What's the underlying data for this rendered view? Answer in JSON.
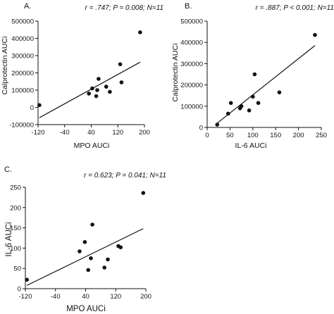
{
  "chart_data": [
    {
      "type": "scatter",
      "panel": "A.",
      "stat": "r = .747; P = 0.008; N=11",
      "xlabel": "MPO AUCi",
      "ylabel": "Calprotectin AUCi",
      "xlim": [
        -120,
        200
      ],
      "ylim": [
        -100000,
        500000
      ],
      "xticks": [
        -120,
        -40,
        40,
        120,
        200
      ],
      "yticks": [
        -100000,
        0,
        100000,
        200000,
        300000,
        400000,
        500000
      ],
      "xtick_labels": [
        "-120",
        "-40",
        "40",
        "120",
        "200"
      ],
      "ytick_labels": [
        "-100000",
        "0",
        "100000",
        "200000",
        "300000",
        "400000",
        "500000"
      ],
      "points": [
        {
          "x": -116,
          "y": 13000
        },
        {
          "x": 33,
          "y": 80000
        },
        {
          "x": 43,
          "y": 110000
        },
        {
          "x": 55,
          "y": 65000
        },
        {
          "x": 58,
          "y": 100000
        },
        {
          "x": 62,
          "y": 165000
        },
        {
          "x": 85,
          "y": 120000
        },
        {
          "x": 96,
          "y": 90000
        },
        {
          "x": 127,
          "y": 250000
        },
        {
          "x": 131,
          "y": 145000
        },
        {
          "x": 187,
          "y": 435000
        }
      ],
      "fit": {
        "x": [
          -116,
          187
        ],
        "y": [
          -60000,
          262000
        ]
      }
    },
    {
      "type": "scatter",
      "panel": "B.",
      "stat": "r = .887; P < 0.001; N=11",
      "xlabel": "IL-6 AUCi",
      "ylabel": "Calprotectin AUCi",
      "xlim": [
        0,
        250
      ],
      "ylim": [
        0,
        500000
      ],
      "xticks": [
        0,
        50,
        100,
        150,
        200,
        250
      ],
      "yticks": [
        0,
        100000,
        200000,
        300000,
        400000,
        500000
      ],
      "xtick_labels": [
        "0",
        "50",
        "100",
        "150",
        "200",
        "250"
      ],
      "ytick_labels": [
        "0",
        "100000",
        "200000",
        "300000",
        "400000",
        "500000"
      ],
      "points": [
        {
          "x": 22,
          "y": 13000
        },
        {
          "x": 46,
          "y": 65000
        },
        {
          "x": 52,
          "y": 115000
        },
        {
          "x": 72,
          "y": 90000
        },
        {
          "x": 75,
          "y": 100000
        },
        {
          "x": 92,
          "y": 80000
        },
        {
          "x": 100,
          "y": 145000
        },
        {
          "x": 104,
          "y": 250000
        },
        {
          "x": 112,
          "y": 115000
        },
        {
          "x": 158,
          "y": 165000
        },
        {
          "x": 236,
          "y": 435000
        }
      ],
      "fit": {
        "x": [
          22,
          236
        ],
        "y": [
          20000,
          385000
        ]
      }
    },
    {
      "type": "scatter",
      "panel": "C.",
      "stat": "r = 0.623; P = 0.041; N=11",
      "xlabel": "MPO AUCi",
      "ylabel": "IL-6 AUCi",
      "xlim": [
        -120,
        200
      ],
      "ylim": [
        0,
        250
      ],
      "xticks": [
        -120,
        -40,
        40,
        120,
        200
      ],
      "yticks": [
        0,
        50,
        100,
        150,
        200,
        250
      ],
      "xtick_labels": [
        "-120",
        "-40",
        "40",
        "120",
        "200"
      ],
      "ytick_labels": [
        "0",
        "50",
        "100",
        "150",
        "200",
        "250"
      ],
      "points": [
        {
          "x": -116,
          "y": 22
        },
        {
          "x": 24,
          "y": 92
        },
        {
          "x": 38,
          "y": 115
        },
        {
          "x": 47,
          "y": 46
        },
        {
          "x": 54,
          "y": 75
        },
        {
          "x": 58,
          "y": 158
        },
        {
          "x": 90,
          "y": 52
        },
        {
          "x": 99,
          "y": 72
        },
        {
          "x": 127,
          "y": 105
        },
        {
          "x": 133,
          "y": 102
        },
        {
          "x": 193,
          "y": 236
        }
      ],
      "fit": {
        "x": [
          -116,
          193
        ],
        "y": [
          8,
          148
        ]
      }
    }
  ]
}
